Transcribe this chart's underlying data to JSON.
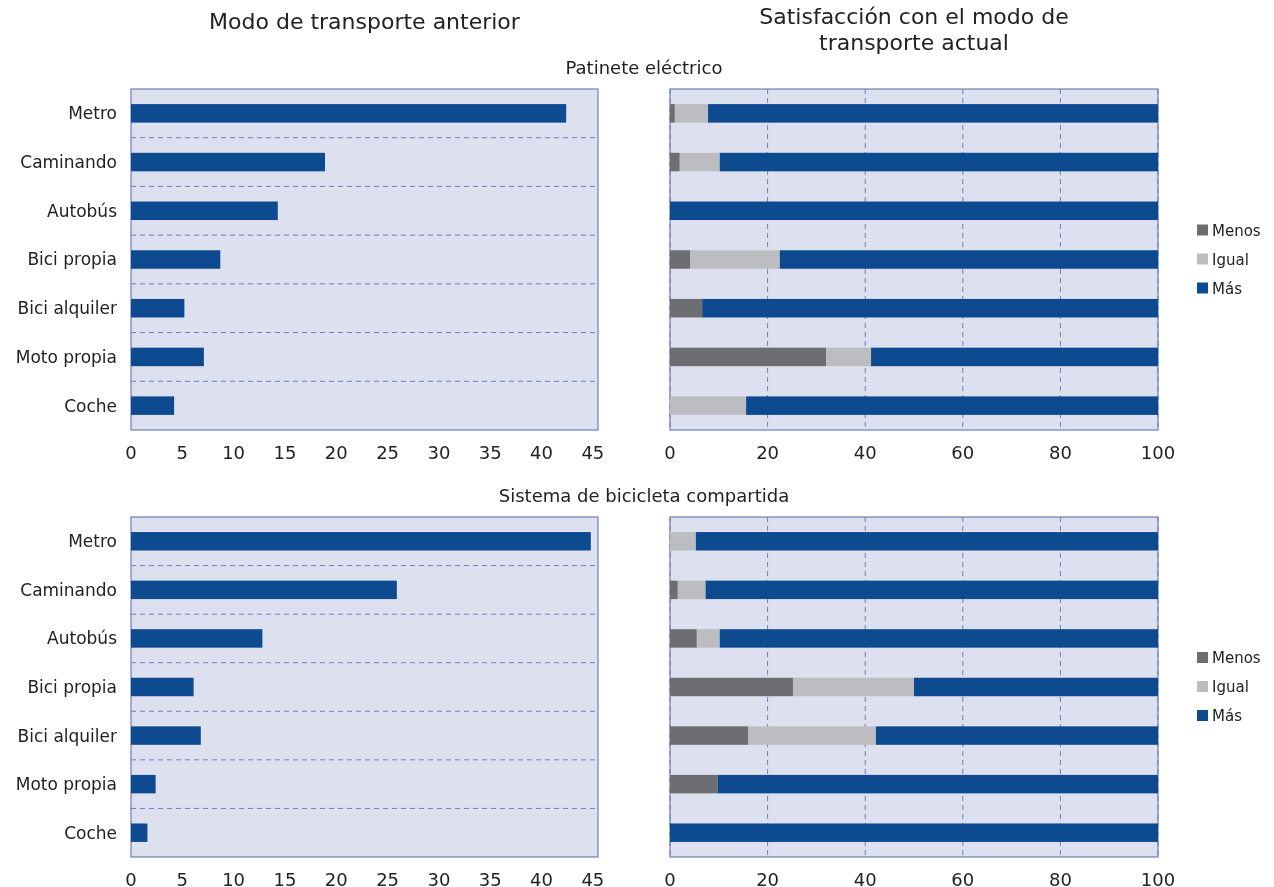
{
  "chart_data": [
    {
      "type": "bar",
      "orientation": "horizontal",
      "title": "Modo de transporte anterior",
      "subtitle": "Patinete eléctrico",
      "categories": [
        "Metro",
        "Caminando",
        "Autobús",
        "Bici propia",
        "Bici alquiler",
        "Moto propia",
        "Coche"
      ],
      "values": [
        42.4,
        18.9,
        14.3,
        8.7,
        5.2,
        7.1,
        4.2
      ],
      "color": "#0e4a8f",
      "xlim": [
        0,
        45.5
      ],
      "xticks": [
        0,
        5,
        10,
        15,
        20,
        25,
        30,
        35,
        40,
        45
      ],
      "grid": "y"
    },
    {
      "type": "bar",
      "orientation": "horizontal",
      "stacked": true,
      "title": "Satisfacción con el modo de transporte actual",
      "categories": [
        null,
        null,
        null,
        null,
        null,
        null,
        null
      ],
      "series": [
        {
          "name": "Menos",
          "color": "#6d6e71",
          "values": [
            1,
            2,
            0,
            4.1,
            6.6,
            32,
            0
          ]
        },
        {
          "name": "Igual",
          "color": "#bcbdc0",
          "values": [
            6.8,
            8.2,
            0,
            18.4,
            0,
            9.2,
            15.6
          ]
        },
        {
          "name": "Más",
          "color": "#0e4a8f",
          "values": [
            92.2,
            89.8,
            100,
            77.5,
            93.4,
            58.8,
            84.4
          ]
        }
      ],
      "xlim": [
        0,
        100
      ],
      "xticks": [
        0,
        20,
        40,
        60,
        80,
        100
      ],
      "grid": "x",
      "legend": "right",
      "tick_labels": "x"
    },
    {
      "type": "bar",
      "orientation": "horizontal",
      "subtitle": "Sistema de bicicleta compartida",
      "categories": [
        "Metro",
        "Caminando",
        "Autobús",
        "Bici propia",
        "Bici alquiler",
        "Moto propia",
        "Coche"
      ],
      "values": [
        44.8,
        25.9,
        12.8,
        6.1,
        6.8,
        2.4,
        1.6
      ],
      "color": "#0e4a8f",
      "xlim": [
        0,
        45.5
      ],
      "xticks": [
        0,
        5,
        10,
        15,
        20,
        25,
        30,
        35,
        40,
        45
      ],
      "grid": "y"
    },
    {
      "type": "bar",
      "orientation": "horizontal",
      "stacked": true,
      "categories": [
        null,
        null,
        null,
        null,
        null,
        null,
        null
      ],
      "series": [
        {
          "name": "Menos",
          "color": "#6d6e71",
          "values": [
            0,
            1.6,
            5.5,
            25.2,
            16,
            9.8,
            0
          ]
        },
        {
          "name": "Igual",
          "color": "#bcbdc0",
          "values": [
            5.3,
            5.7,
            4.7,
            24.8,
            26.2,
            0,
            0
          ]
        },
        {
          "name": "Más",
          "color": "#0e4a8f",
          "values": [
            94.7,
            92.7,
            89.8,
            50,
            57.8,
            90.2,
            100
          ]
        }
      ],
      "xlim": [
        0,
        100
      ],
      "xticks": [
        0,
        20,
        40,
        60,
        80,
        100
      ],
      "grid": "x",
      "legend": "right",
      "tick_labels": "x"
    }
  ]
}
